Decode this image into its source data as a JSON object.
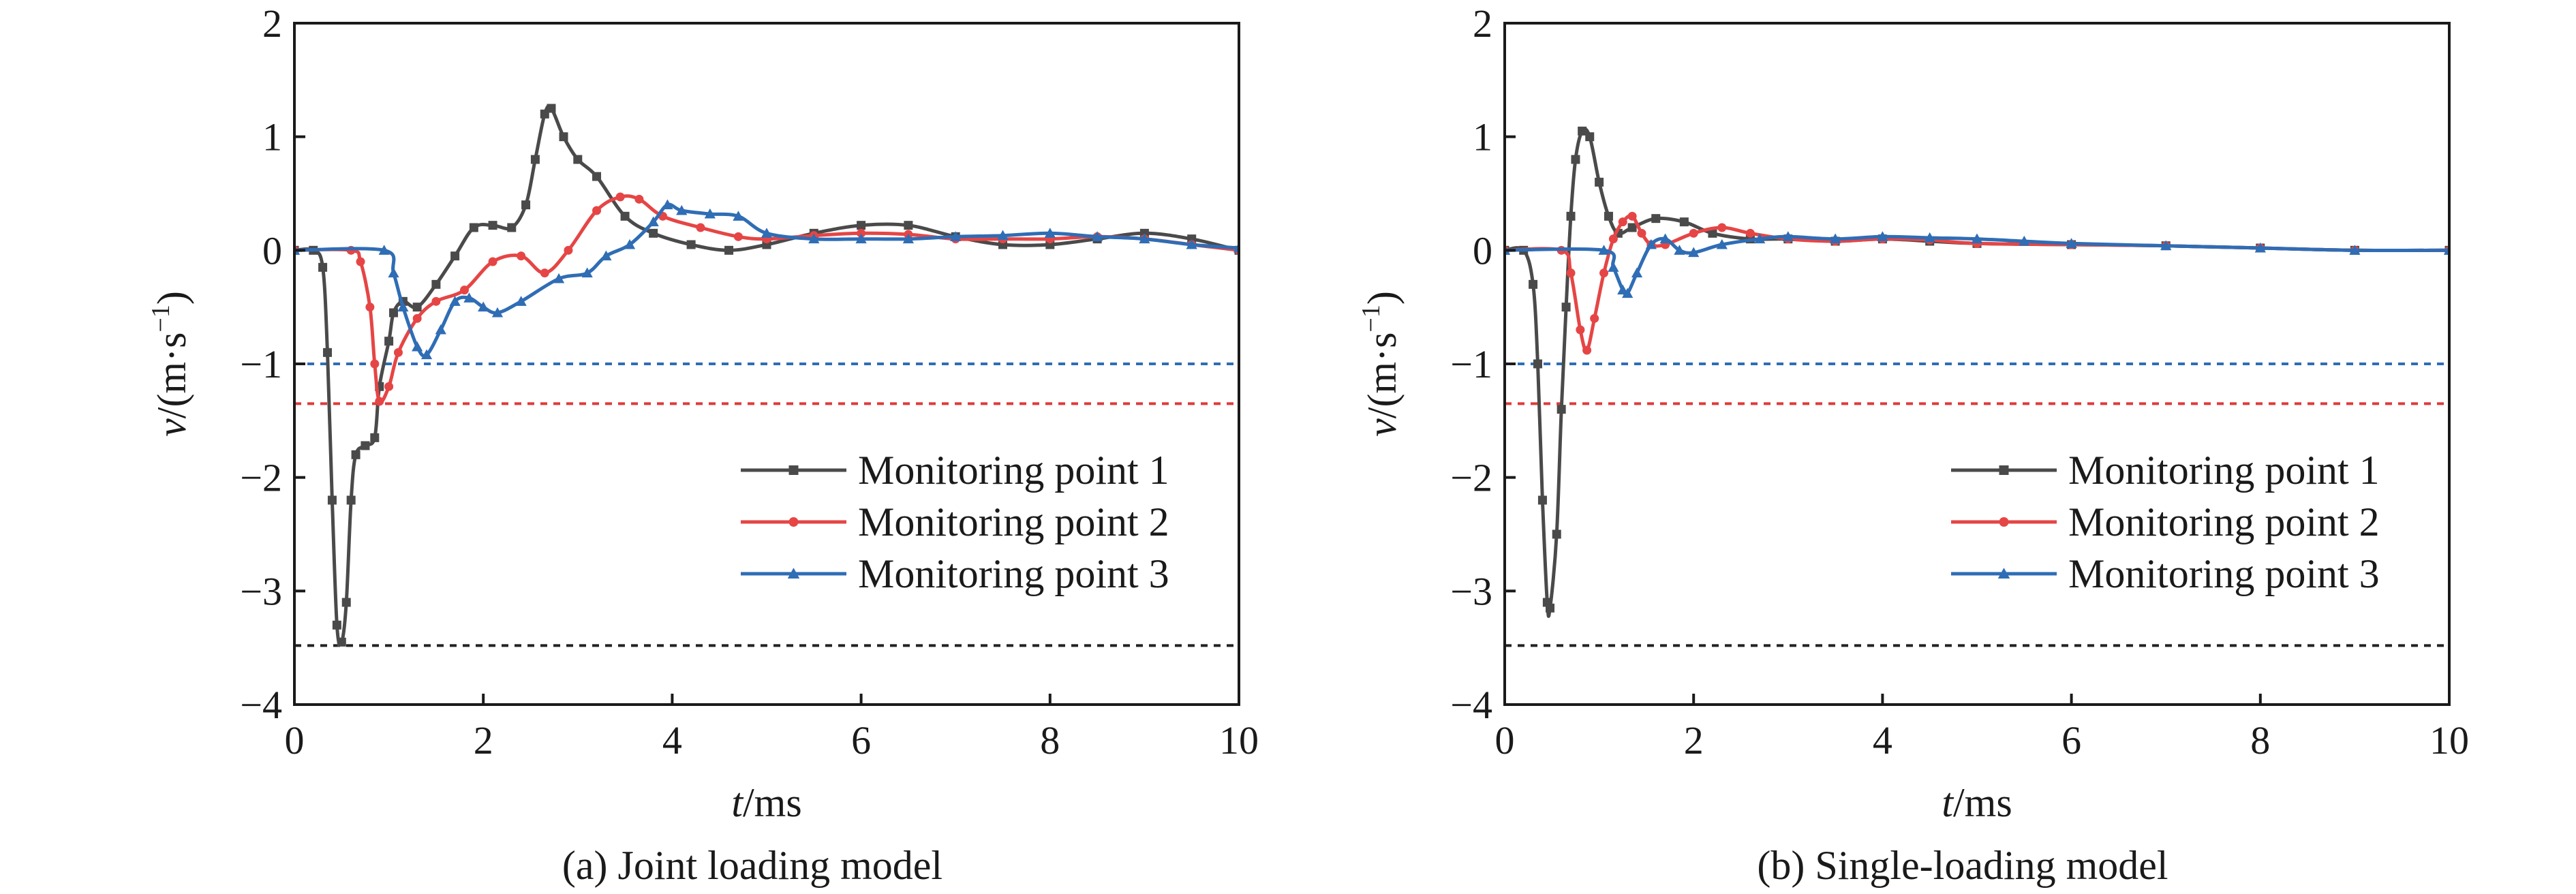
{
  "chart_data": [
    {
      "type": "line",
      "caption": "(a) Joint loading model",
      "xlabel_italic": "t",
      "xlabel_rest": "/ms",
      "ylabel_italic": "v",
      "ylabel_rest": "/(m·s",
      "ylabel_sup": "−1",
      "ylabel_close": ")",
      "xlim": [
        0,
        10
      ],
      "ylim": [
        -4,
        2
      ],
      "xticks": [
        0,
        2,
        4,
        6,
        8,
        10
      ],
      "yticks": [
        -4,
        -3,
        -2,
        -1,
        0,
        1,
        2
      ],
      "xtick_labels": [
        "0",
        "2",
        "4",
        "6",
        "8",
        "10"
      ],
      "ytick_labels": [
        "−4",
        "−3",
        "−2",
        "−1",
        "0",
        "1",
        "2"
      ],
      "legend_position": "lower-right",
      "reference_lines": [
        {
          "y": -1.0,
          "color": "#2f6db5"
        },
        {
          "y": -1.35,
          "color": "#e03a3a"
        },
        {
          "y": -3.48,
          "color": "#222222"
        }
      ],
      "series": [
        {
          "name": "Monitoring point 1",
          "color": "#4a4a4a",
          "marker": "square",
          "points": [
            [
              0,
              0
            ],
            [
              0.2,
              0
            ],
            [
              0.3,
              -0.15
            ],
            [
              0.35,
              -0.9
            ],
            [
              0.4,
              -2.2
            ],
            [
              0.45,
              -3.3
            ],
            [
              0.5,
              -3.45
            ],
            [
              0.55,
              -3.1
            ],
            [
              0.6,
              -2.2
            ],
            [
              0.65,
              -1.8
            ],
            [
              0.75,
              -1.72
            ],
            [
              0.85,
              -1.65
            ],
            [
              0.9,
              -1.2
            ],
            [
              1.0,
              -0.8
            ],
            [
              1.05,
              -0.55
            ],
            [
              1.15,
              -0.45
            ],
            [
              1.3,
              -0.5
            ],
            [
              1.5,
              -0.3
            ],
            [
              1.7,
              -0.05
            ],
            [
              1.9,
              0.2
            ],
            [
              2.1,
              0.22
            ],
            [
              2.3,
              0.2
            ],
            [
              2.45,
              0.4
            ],
            [
              2.55,
              0.8
            ],
            [
              2.65,
              1.2
            ],
            [
              2.72,
              1.25
            ],
            [
              2.85,
              1.0
            ],
            [
              3.0,
              0.8
            ],
            [
              3.2,
              0.65
            ],
            [
              3.5,
              0.3
            ],
            [
              3.8,
              0.15
            ],
            [
              4.2,
              0.05
            ],
            [
              4.6,
              0.0
            ],
            [
              5.0,
              0.05
            ],
            [
              5.5,
              0.15
            ],
            [
              6.0,
              0.22
            ],
            [
              6.5,
              0.22
            ],
            [
              7.0,
              0.12
            ],
            [
              7.5,
              0.05
            ],
            [
              8.0,
              0.05
            ],
            [
              8.5,
              0.1
            ],
            [
              9.0,
              0.15
            ],
            [
              9.5,
              0.1
            ],
            [
              10,
              0.0
            ]
          ]
        },
        {
          "name": "Monitoring point 2",
          "color": "#e64545",
          "marker": "circle",
          "points": [
            [
              0,
              0
            ],
            [
              0.6,
              0
            ],
            [
              0.7,
              -0.1
            ],
            [
              0.8,
              -0.5
            ],
            [
              0.85,
              -1.0
            ],
            [
              0.9,
              -1.33
            ],
            [
              1.0,
              -1.2
            ],
            [
              1.1,
              -0.9
            ],
            [
              1.3,
              -0.6
            ],
            [
              1.5,
              -0.45
            ],
            [
              1.8,
              -0.35
            ],
            [
              2.1,
              -0.1
            ],
            [
              2.4,
              -0.05
            ],
            [
              2.65,
              -0.2
            ],
            [
              2.9,
              0.0
            ],
            [
              3.2,
              0.35
            ],
            [
              3.45,
              0.47
            ],
            [
              3.65,
              0.45
            ],
            [
              3.9,
              0.3
            ],
            [
              4.3,
              0.2
            ],
            [
              4.7,
              0.12
            ],
            [
              5.0,
              0.1
            ],
            [
              5.5,
              0.13
            ],
            [
              6.0,
              0.15
            ],
            [
              6.5,
              0.14
            ],
            [
              7.0,
              0.1
            ],
            [
              7.5,
              0.1
            ],
            [
              8.0,
              0.1
            ],
            [
              8.5,
              0.12
            ],
            [
              9.0,
              0.1
            ],
            [
              9.5,
              0.05
            ],
            [
              10,
              0.0
            ]
          ]
        },
        {
          "name": "Monitoring point 3",
          "color": "#2f6db5",
          "marker": "triangle",
          "points": [
            [
              0,
              0
            ],
            [
              0.95,
              0
            ],
            [
              1.05,
              -0.2
            ],
            [
              1.15,
              -0.5
            ],
            [
              1.3,
              -0.85
            ],
            [
              1.4,
              -0.92
            ],
            [
              1.55,
              -0.7
            ],
            [
              1.7,
              -0.45
            ],
            [
              1.85,
              -0.42
            ],
            [
              2.0,
              -0.5
            ],
            [
              2.15,
              -0.55
            ],
            [
              2.4,
              -0.45
            ],
            [
              2.8,
              -0.25
            ],
            [
              3.1,
              -0.2
            ],
            [
              3.3,
              -0.05
            ],
            [
              3.55,
              0.05
            ],
            [
              3.8,
              0.25
            ],
            [
              3.95,
              0.4
            ],
            [
              4.1,
              0.35
            ],
            [
              4.4,
              0.32
            ],
            [
              4.7,
              0.3
            ],
            [
              5.0,
              0.15
            ],
            [
              5.5,
              0.1
            ],
            [
              6.0,
              0.1
            ],
            [
              6.5,
              0.1
            ],
            [
              7.0,
              0.12
            ],
            [
              7.5,
              0.13
            ],
            [
              8.0,
              0.15
            ],
            [
              8.5,
              0.12
            ],
            [
              9.0,
              0.1
            ],
            [
              9.5,
              0.05
            ],
            [
              10,
              0.02
            ]
          ]
        }
      ]
    },
    {
      "type": "line",
      "caption": "(b) Single-loading model",
      "xlabel_italic": "t",
      "xlabel_rest": "/ms",
      "ylabel_italic": "v",
      "ylabel_rest": "/(m·s",
      "ylabel_sup": "−1",
      "ylabel_close": ")",
      "xlim": [
        0,
        10
      ],
      "ylim": [
        -4,
        2
      ],
      "xticks": [
        0,
        2,
        4,
        6,
        8,
        10
      ],
      "yticks": [
        -4,
        -3,
        -2,
        -1,
        0,
        1,
        2
      ],
      "xtick_labels": [
        "0",
        "2",
        "4",
        "6",
        "8",
        "10"
      ],
      "ytick_labels": [
        "−4",
        "−3",
        "−2",
        "−1",
        "0",
        "1",
        "2"
      ],
      "legend_position": "lower-right",
      "reference_lines": [
        {
          "y": -1.0,
          "color": "#2f6db5"
        },
        {
          "y": -1.35,
          "color": "#e03a3a"
        },
        {
          "y": -3.48,
          "color": "#222222"
        }
      ],
      "series": [
        {
          "name": "Monitoring point 1",
          "color": "#4a4a4a",
          "marker": "square",
          "points": [
            [
              0,
              0
            ],
            [
              0.2,
              0
            ],
            [
              0.3,
              -0.3
            ],
            [
              0.35,
              -1.0
            ],
            [
              0.4,
              -2.2
            ],
            [
              0.45,
              -3.1
            ],
            [
              0.48,
              -3.15
            ],
            [
              0.55,
              -2.5
            ],
            [
              0.6,
              -1.4
            ],
            [
              0.65,
              -0.5
            ],
            [
              0.7,
              0.3
            ],
            [
              0.75,
              0.8
            ],
            [
              0.82,
              1.05
            ],
            [
              0.9,
              1.0
            ],
            [
              1.0,
              0.6
            ],
            [
              1.1,
              0.3
            ],
            [
              1.2,
              0.15
            ],
            [
              1.35,
              0.2
            ],
            [
              1.6,
              0.28
            ],
            [
              1.9,
              0.25
            ],
            [
              2.2,
              0.15
            ],
            [
              2.6,
              0.1
            ],
            [
              3.0,
              0.1
            ],
            [
              3.5,
              0.08
            ],
            [
              4.0,
              0.1
            ],
            [
              4.5,
              0.08
            ],
            [
              5.0,
              0.06
            ],
            [
              6.0,
              0.05
            ],
            [
              7.0,
              0.04
            ],
            [
              8.0,
              0.02
            ],
            [
              9.0,
              0.0
            ],
            [
              10,
              0.0
            ]
          ]
        },
        {
          "name": "Monitoring point 2",
          "color": "#e64545",
          "marker": "circle",
          "points": [
            [
              0,
              0
            ],
            [
              0.6,
              0
            ],
            [
              0.7,
              -0.2
            ],
            [
              0.8,
              -0.7
            ],
            [
              0.87,
              -0.88
            ],
            [
              0.95,
              -0.6
            ],
            [
              1.05,
              -0.2
            ],
            [
              1.15,
              0.1
            ],
            [
              1.25,
              0.25
            ],
            [
              1.35,
              0.3
            ],
            [
              1.45,
              0.15
            ],
            [
              1.55,
              0.05
            ],
            [
              1.7,
              0.05
            ],
            [
              2.0,
              0.15
            ],
            [
              2.3,
              0.2
            ],
            [
              2.6,
              0.15
            ],
            [
              3.0,
              0.1
            ],
            [
              3.5,
              0.08
            ],
            [
              4.0,
              0.1
            ],
            [
              4.5,
              0.09
            ],
            [
              5.0,
              0.06
            ],
            [
              6.0,
              0.05
            ],
            [
              7.0,
              0.04
            ],
            [
              8.0,
              0.02
            ],
            [
              9.0,
              0.0
            ],
            [
              10,
              0.0
            ]
          ]
        },
        {
          "name": "Monitoring point 3",
          "color": "#2f6db5",
          "marker": "triangle",
          "points": [
            [
              0,
              0
            ],
            [
              1.05,
              0
            ],
            [
              1.15,
              -0.15
            ],
            [
              1.25,
              -0.35
            ],
            [
              1.3,
              -0.38
            ],
            [
              1.4,
              -0.2
            ],
            [
              1.55,
              0.05
            ],
            [
              1.7,
              0.1
            ],
            [
              1.85,
              0.0
            ],
            [
              2.0,
              -0.02
            ],
            [
              2.3,
              0.05
            ],
            [
              2.7,
              0.1
            ],
            [
              3.0,
              0.12
            ],
            [
              3.5,
              0.1
            ],
            [
              4.0,
              0.12
            ],
            [
              4.5,
              0.11
            ],
            [
              5.0,
              0.1
            ],
            [
              5.5,
              0.08
            ],
            [
              6.0,
              0.06
            ],
            [
              7.0,
              0.04
            ],
            [
              8.0,
              0.02
            ],
            [
              9.0,
              0.0
            ],
            [
              10,
              0.0
            ]
          ]
        }
      ]
    }
  ]
}
